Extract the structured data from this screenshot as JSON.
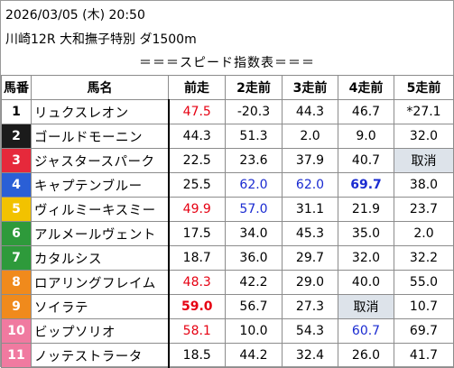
{
  "header": {
    "datetime": "2026/03/05 (木) 20:50",
    "race": "川崎12R 大和撫子特別 ダ1500m",
    "subtitle": "＝＝＝スピード指数表＝＝＝"
  },
  "columns": [
    "馬番",
    "馬名",
    "前走",
    "2走前",
    "3走前",
    "4走前",
    "5走前"
  ],
  "colors": {
    "red_text": "#e60012",
    "blue_text": "#1a2bd1",
    "cancel_bg": "#dde3ea"
  },
  "rows": [
    {
      "num": "1",
      "num_bg": "#ffffff",
      "num_color": "#000000",
      "name": "リュクスレオン",
      "vals": [
        {
          "t": "47.5",
          "c": "red"
        },
        {
          "t": "-20.3"
        },
        {
          "t": "44.3"
        },
        {
          "t": "46.7"
        },
        {
          "t": "*27.1"
        }
      ]
    },
    {
      "num": "2",
      "num_bg": "#1b1b1b",
      "num_color": "#ffffff",
      "name": "ゴールドモーニン",
      "vals": [
        {
          "t": "44.3"
        },
        {
          "t": "51.3"
        },
        {
          "t": "2.0"
        },
        {
          "t": "9.0"
        },
        {
          "t": "32.0"
        }
      ]
    },
    {
      "num": "3",
      "num_bg": "#e6293b",
      "num_color": "#ffffff",
      "name": "ジャスタースパーク",
      "vals": [
        {
          "t": "22.5"
        },
        {
          "t": "23.6"
        },
        {
          "t": "37.9"
        },
        {
          "t": "40.7"
        },
        {
          "t": "取消",
          "cancel": true
        }
      ]
    },
    {
      "num": "4",
      "num_bg": "#2a5fd6",
      "num_color": "#ffffff",
      "name": "キャプテンブルー",
      "vals": [
        {
          "t": "25.5"
        },
        {
          "t": "62.0",
          "c": "blue"
        },
        {
          "t": "62.0",
          "c": "blue"
        },
        {
          "t": "69.7",
          "c": "blue",
          "b": true
        },
        {
          "t": "38.0"
        }
      ]
    },
    {
      "num": "5",
      "num_bg": "#f2c200",
      "num_color": "#ffffff",
      "name": "ヴィルミーキスミー",
      "vals": [
        {
          "t": "49.9",
          "c": "red"
        },
        {
          "t": "57.0",
          "c": "blue"
        },
        {
          "t": "31.1"
        },
        {
          "t": "21.9"
        },
        {
          "t": "23.7"
        }
      ]
    },
    {
      "num": "6",
      "num_bg": "#2e9a3b",
      "num_color": "#ffffff",
      "name": "アルメールヴェント",
      "vals": [
        {
          "t": "17.5"
        },
        {
          "t": "34.0"
        },
        {
          "t": "45.3"
        },
        {
          "t": "35.0"
        },
        {
          "t": "2.0"
        }
      ]
    },
    {
      "num": "7",
      "num_bg": "#2e9a3b",
      "num_color": "#ffffff",
      "name": "カタルシス",
      "vals": [
        {
          "t": "18.7"
        },
        {
          "t": "36.0"
        },
        {
          "t": "29.7"
        },
        {
          "t": "32.0"
        },
        {
          "t": "32.2"
        }
      ]
    },
    {
      "num": "8",
      "num_bg": "#f08a1c",
      "num_color": "#ffffff",
      "name": "ロアリングフレイム",
      "vals": [
        {
          "t": "48.3",
          "c": "red"
        },
        {
          "t": "42.2"
        },
        {
          "t": "29.0"
        },
        {
          "t": "40.0"
        },
        {
          "t": "55.0"
        }
      ]
    },
    {
      "num": "9",
      "num_bg": "#f08a1c",
      "num_color": "#ffffff",
      "name": "ソイラテ",
      "vals": [
        {
          "t": "59.0",
          "c": "red",
          "b": true
        },
        {
          "t": "56.7"
        },
        {
          "t": "27.3"
        },
        {
          "t": "取消",
          "cancel": true
        },
        {
          "t": "10.7"
        }
      ]
    },
    {
      "num": "10",
      "num_bg": "#f07aa0",
      "num_color": "#ffffff",
      "name": "ビップソリオ",
      "vals": [
        {
          "t": "58.1",
          "c": "red"
        },
        {
          "t": "10.0"
        },
        {
          "t": "54.3"
        },
        {
          "t": "60.7",
          "c": "blue"
        },
        {
          "t": "69.7"
        }
      ]
    },
    {
      "num": "11",
      "num_bg": "#f07aa0",
      "num_color": "#ffffff",
      "name": "ノッテストラータ",
      "vals": [
        {
          "t": "18.5"
        },
        {
          "t": "44.2"
        },
        {
          "t": "32.4"
        },
        {
          "t": "26.0"
        },
        {
          "t": "41.7"
        }
      ]
    }
  ]
}
